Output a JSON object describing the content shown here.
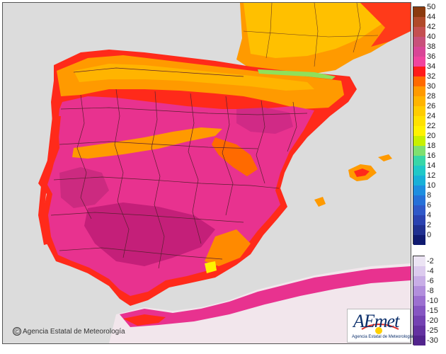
{
  "map": {
    "credit_text": "Agencia Estatal de Meteorología",
    "copyright_symbol": "©",
    "logo_text": "AEmet",
    "logo_subtext": "Agencia Estatal de Meteorología",
    "colors": {
      "sea": "#dcdcdc",
      "france_warm": "#ffb000",
      "france_orange": "#ff8a00",
      "iberia_magenta": "#e8328f",
      "iberia_dark": "#c41f79",
      "coast_red": "#ff2a1a",
      "north_orange": "#ff9a00",
      "pyrenees_green": "#8fe05a",
      "africa_pale": "#f2e6ec",
      "border_line": "#5a2030"
    }
  },
  "legend": {
    "warm_ticks": [
      "50",
      "44",
      "42",
      "40",
      "38",
      "36",
      "34",
      "32",
      "30",
      "28",
      "26",
      "24",
      "22",
      "20",
      "18",
      "16",
      "14",
      "12",
      "10",
      "8",
      "6",
      "4",
      "2",
      "0"
    ],
    "warm_colors": [
      "#8b3a0e",
      "#b04a2a",
      "#c45050",
      "#c8507a",
      "#d84596",
      "#f0449e",
      "#ff1a1a",
      "#ff6a00",
      "#ff9a00",
      "#ffb400",
      "#ffcc00",
      "#ffe100",
      "#fff200",
      "#c8f000",
      "#7fe070",
      "#38d6a8",
      "#20c8c8",
      "#18b0d8",
      "#1e8ee0",
      "#2670d8",
      "#2f58c8",
      "#2a42b0",
      "#203090",
      "#101a70"
    ],
    "cold_ticks": [
      "-2",
      "-4",
      "-6",
      "-8",
      "-10",
      "-15",
      "-20",
      "-25",
      "-30"
    ],
    "cold_colors": [
      "#ece4f4",
      "#dccbee",
      "#c8aee6",
      "#b28fdc",
      "#9c70d0",
      "#8656c2",
      "#7442b2",
      "#6432a0",
      "#52248c"
    ]
  }
}
